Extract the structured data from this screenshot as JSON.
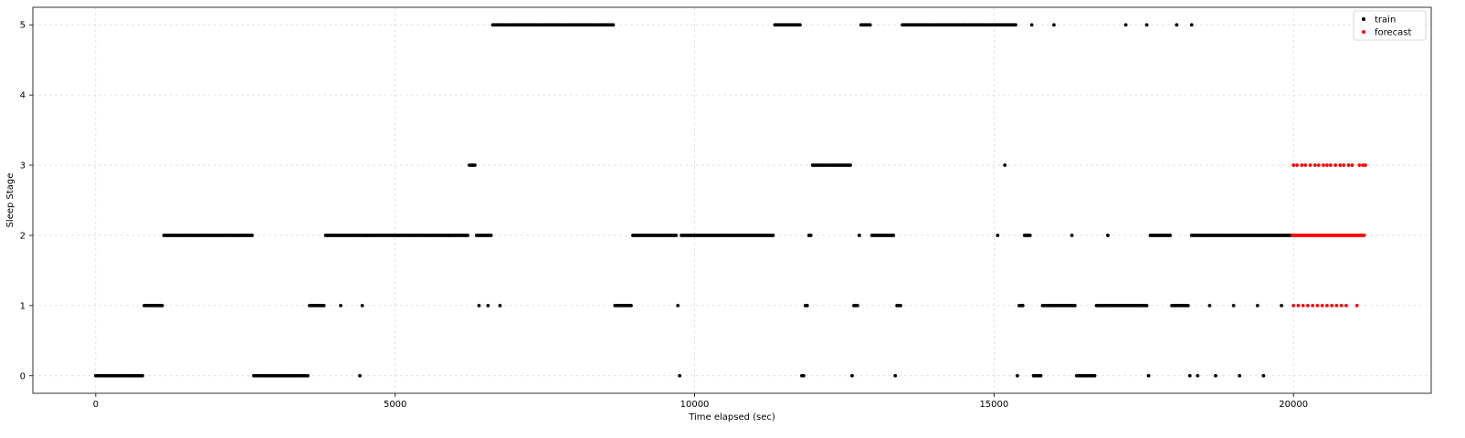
{
  "chart_data": {
    "type": "scatter",
    "title": "",
    "xlabel": "Time elapsed (sec)",
    "ylabel": "Sleep Stage",
    "xlim": [
      -1050,
      22300
    ],
    "ylim": [
      -0.25,
      5.25
    ],
    "xticks": [
      0,
      5000,
      10000,
      15000,
      20000
    ],
    "yticks": [
      0,
      1,
      2,
      3,
      4,
      5
    ],
    "grid": true,
    "legend_position": "top-right",
    "series": [
      {
        "name": "train",
        "color": "#000000",
        "runs": [
          [
            0,
            810,
            0
          ],
          [
            810,
            1140,
            1
          ],
          [
            1140,
            2640,
            2
          ],
          [
            2640,
            3570,
            0
          ],
          [
            3570,
            3840,
            1
          ],
          [
            3840,
            6240,
            2
          ],
          [
            6240,
            6360,
            3
          ],
          [
            6360,
            6630,
            2
          ],
          [
            6630,
            8670,
            5
          ],
          [
            8670,
            8970,
            1
          ],
          [
            8970,
            9720,
            2
          ],
          [
            9720,
            9750,
            1
          ],
          [
            9750,
            9780,
            0
          ],
          [
            9780,
            11340,
            2
          ],
          [
            11340,
            11790,
            5
          ],
          [
            11790,
            11850,
            0
          ],
          [
            11850,
            11910,
            1
          ],
          [
            11910,
            11970,
            2
          ],
          [
            11970,
            12630,
            3
          ],
          [
            12630,
            12660,
            0
          ],
          [
            12660,
            12750,
            1
          ],
          [
            12750,
            12780,
            2
          ],
          [
            12780,
            12960,
            5
          ],
          [
            12960,
            13350,
            2
          ],
          [
            13350,
            13380,
            0
          ],
          [
            13380,
            13470,
            1
          ],
          [
            13470,
            15390,
            5
          ],
          [
            15390,
            15420,
            0
          ],
          [
            15420,
            15510,
            1
          ],
          [
            15510,
            15630,
            2
          ],
          [
            15630,
            15660,
            5
          ],
          [
            15660,
            15810,
            0
          ],
          [
            15810,
            16380,
            1
          ],
          [
            16380,
            16710,
            0
          ],
          [
            16710,
            17580,
            1
          ],
          [
            17580,
            17610,
            0
          ],
          [
            17610,
            17970,
            2
          ],
          [
            17970,
            18270,
            1
          ],
          [
            18270,
            18300,
            0
          ],
          [
            18300,
            19980,
            2
          ]
        ],
        "points": [
          [
            4410,
            0
          ],
          [
            4090,
            1
          ],
          [
            4450,
            1
          ],
          [
            4520,
            2
          ],
          [
            5900,
            2
          ],
          [
            6400,
            1
          ],
          [
            6550,
            1
          ],
          [
            6750,
            1
          ],
          [
            15180,
            3
          ],
          [
            15060,
            2
          ],
          [
            16000,
            5
          ],
          [
            17200,
            5
          ],
          [
            17550,
            5
          ],
          [
            18050,
            5
          ],
          [
            18300,
            5
          ],
          [
            18400,
            0
          ],
          [
            18700,
            0
          ],
          [
            19100,
            0
          ],
          [
            19500,
            0
          ],
          [
            18600,
            1
          ],
          [
            19000,
            1
          ],
          [
            19400,
            1
          ],
          [
            19800,
            1
          ],
          [
            16300,
            2
          ],
          [
            16900,
            2
          ],
          [
            14500,
            5
          ],
          [
            13800,
            5
          ]
        ]
      },
      {
        "name": "forecast",
        "color": "#ff0000",
        "runs": [
          [
            19980,
            21210,
            2
          ]
        ],
        "points": [
          [
            20000,
            3
          ],
          [
            20060,
            3
          ],
          [
            20140,
            3
          ],
          [
            20200,
            3
          ],
          [
            20280,
            3
          ],
          [
            20360,
            3
          ],
          [
            20420,
            3
          ],
          [
            20500,
            3
          ],
          [
            20560,
            3
          ],
          [
            20620,
            3
          ],
          [
            20700,
            3
          ],
          [
            20780,
            3
          ],
          [
            20840,
            3
          ],
          [
            20920,
            3
          ],
          [
            20980,
            3
          ],
          [
            21100,
            3
          ],
          [
            21160,
            3
          ],
          [
            21200,
            3
          ],
          [
            20000,
            1
          ],
          [
            20080,
            1
          ],
          [
            20160,
            1
          ],
          [
            20240,
            1
          ],
          [
            20320,
            1
          ],
          [
            20400,
            1
          ],
          [
            20480,
            1
          ],
          [
            20560,
            1
          ],
          [
            20640,
            1
          ],
          [
            20720,
            1
          ],
          [
            20800,
            1
          ],
          [
            20880,
            1
          ],
          [
            21060,
            1
          ]
        ]
      }
    ]
  }
}
